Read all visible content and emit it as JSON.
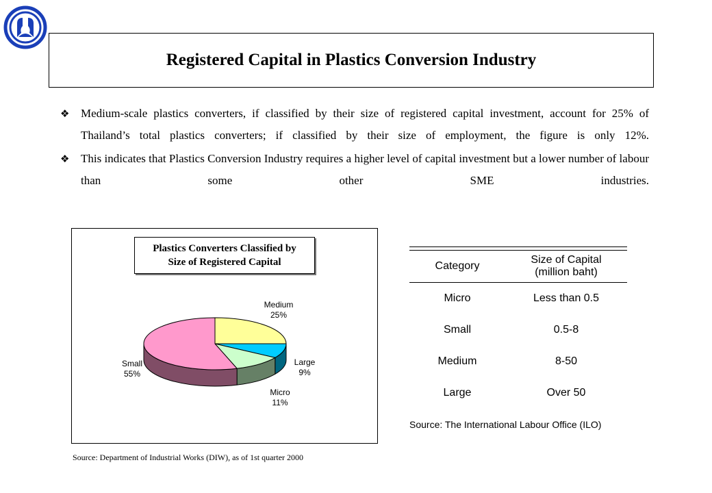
{
  "page": {
    "title": "Registered Capital in Plastics Conversion Industry",
    "bullets": [
      "Medium-scale plastics converters, if classified by their size of registered capital investment, account for 25% of Thailand’s total plastics converters; if classified by their size of employment, the figure is only 12%.",
      "This indicates that Plastics Conversion Industry requires a higher level of capital investment but a lower number of labour than some other SME industries."
    ],
    "source_left": "Source: Department of Industrial Works (DIW), as of 1st quarter 2000",
    "source_right": "Source: The International Labour Office (ILO)"
  },
  "colors": {
    "medium": "#ffff99",
    "large": "#00ccff",
    "micro": "#ccffcc",
    "small": "#ff99cc"
  },
  "chart_data": {
    "type": "pie",
    "title_lines": [
      "Plastics Converters Classified by",
      "Size of Registered Capital"
    ],
    "slices": [
      {
        "name": "Medium",
        "value": 25,
        "label": "25%"
      },
      {
        "name": "Large",
        "value": 9,
        "label": "9%"
      },
      {
        "name": "Micro",
        "value": 11,
        "label": "11%"
      },
      {
        "name": "Small",
        "value": 55,
        "label": "55%"
      }
    ],
    "style": "3d"
  },
  "table": {
    "headers": [
      "Category",
      "Size of Capital",
      "(million baht)"
    ],
    "rows": [
      {
        "category": "Micro",
        "capital": "Less than 0.5"
      },
      {
        "category": "Small",
        "capital": "0.5-8"
      },
      {
        "category": "Medium",
        "capital": "8-50"
      },
      {
        "category": "Large",
        "capital": "Over 50"
      }
    ]
  }
}
